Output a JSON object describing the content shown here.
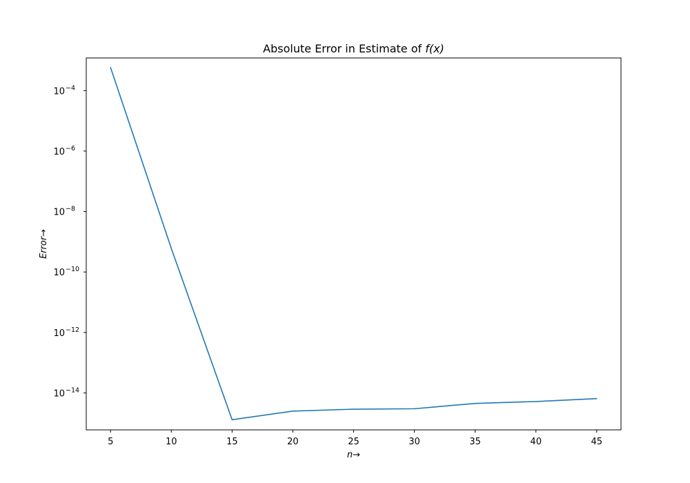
{
  "chart_data": {
    "type": "line",
    "title": "Absolute Error in Estimate of f(x)",
    "title_parts": {
      "prefix": "Absolute Error in Estimate of ",
      "math": "f(x)"
    },
    "xlabel": "n→",
    "xlabel_parts": {
      "var": "n",
      "arrow": "→"
    },
    "ylabel": "Error→",
    "ylabel_parts": {
      "var": "Error",
      "arrow": "→"
    },
    "x_scale": "linear",
    "y_scale": "log",
    "xlim": [
      3,
      47
    ],
    "ylim": [
      6e-16,
      0.0012
    ],
    "x_ticks": [
      5,
      10,
      15,
      20,
      25,
      30,
      35,
      40,
      45
    ],
    "y_tick_exponents": [
      -4,
      -6,
      -8,
      -10,
      -12,
      -14
    ],
    "y_tick_base": "10",
    "grid": false,
    "line_color": "#1f77b4",
    "series": [
      {
        "x": [
          5,
          10,
          15,
          20,
          25,
          30,
          35,
          40,
          45
        ],
        "values": [
          0.00058,
          6e-10,
          1.3e-15,
          2.5e-15,
          2.9e-15,
          3e-15,
          4.5e-15,
          5.2e-15,
          6.5e-15
        ]
      }
    ]
  }
}
